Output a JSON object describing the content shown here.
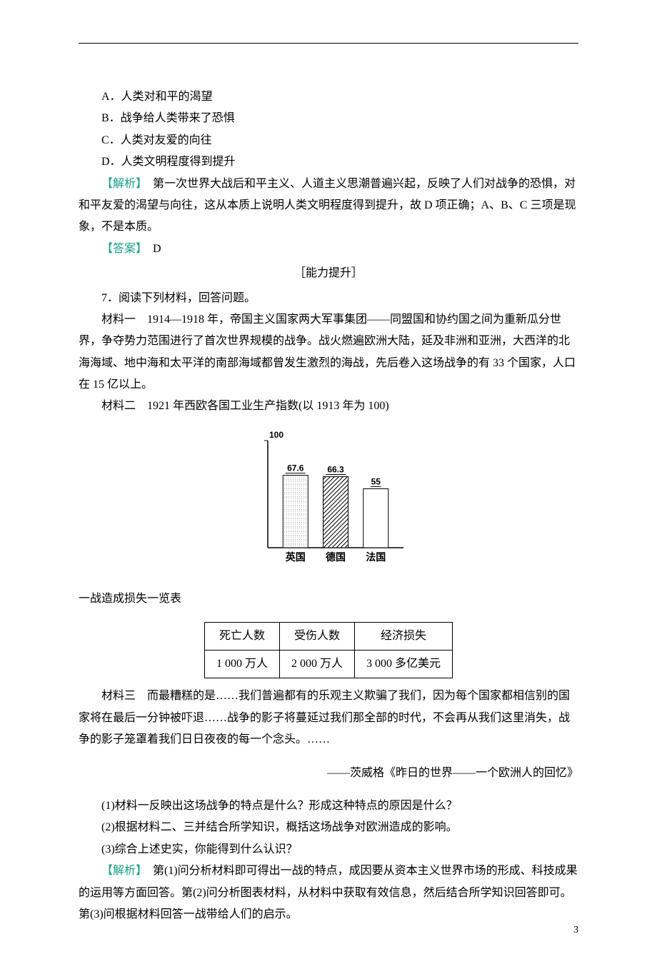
{
  "options": {
    "A": "A．人类对和平的渴望",
    "B": "B．战争给人类带来了恐惧",
    "C": "C．人类对友爱的向往",
    "D": "D．人类文明程度得到提升"
  },
  "analysis1_label": "【解析】",
  "analysis1_text": "　第一次世界大战后和平主义、人道主义思潮普遍兴起，反映了人们对战争的恐惧，对和平友爱的渴望与向往，这从本质上说明人类文明程度得到提升，故 D 项正确；A、B、C 三项是现象，不是本质。",
  "answer_label": "【答案】",
  "answer_value": "　D",
  "section_title": "［能力提升］",
  "q7_stem": "7．阅读下列材料，回答问题。",
  "m1": "材料一　1914—1918 年，帝国主义国家两大军事集团——同盟国和协约国之间为重新瓜分世界，争夺势力范围进行了首次世界规模的战争。战火燃遍欧洲大陆，延及非洲和亚洲，大西洋的北海海域、地中海和太平洋的南部海域都曾发生激烈的海战，先后卷入这场战争的有 33 个国家，人口在 15 亿以上。",
  "m2_intro": "材料二　1921 年西欧各国工业生产指数(以 1913 年为 100)",
  "chart": {
    "ymax": 100,
    "ymax_label": "100",
    "background_color": "#ffffff",
    "axis_color": "#000000",
    "label_fontsize": 12,
    "label_weight": "bold",
    "bars": [
      {
        "label": "英国",
        "value": 67.6,
        "value_label": "67.6",
        "fill": "dots"
      },
      {
        "label": "德国",
        "value": 66.3,
        "value_label": "66.3",
        "fill": "hatch"
      },
      {
        "label": "法国",
        "value": 55,
        "value_label": "55",
        "fill": "none"
      }
    ]
  },
  "loss_title": "一战造成损失一览表",
  "loss_table": {
    "headers": [
      "死亡人数",
      "受伤人数",
      "经济损失"
    ],
    "row": [
      "1 000 万人",
      "2 000 万人",
      "3 000 多亿美元"
    ]
  },
  "m3": "材料三　而最糟糕的是……我们普遍都有的乐观主义欺骗了我们，因为每个国家都相信别的国家将在最后一分钟被吓退……战争的影子将蔓延过我们那全部的时代，不会再从我们这里消失，战争的影子笼罩着我们日日夜夜的每一个念头。……",
  "m3_src": "——茨威格《昨日的世界——一个欧洲人的回忆》",
  "subq1": "(1)材料一反映出这场战争的特点是什么？形成这种特点的原因是什么？",
  "subq2": "(2)根据材料二、三并结合所学知识，概括这场战争对欧洲造成的影响。",
  "subq3": "(3)综合上述史实，你能得到什么认识？",
  "analysis2_label": "【解析】",
  "analysis2_text": "　第(1)问分析材料即可得出一战的特点，成因要从资本主义世界市场的形成、科技成果的运用等方面回答。第(2)问分析图表材料，从材料中获取有效信息，然后结合所学知识回答即可。第(3)问根据材料回答一战带给人们的启示。",
  "page_number": "3"
}
